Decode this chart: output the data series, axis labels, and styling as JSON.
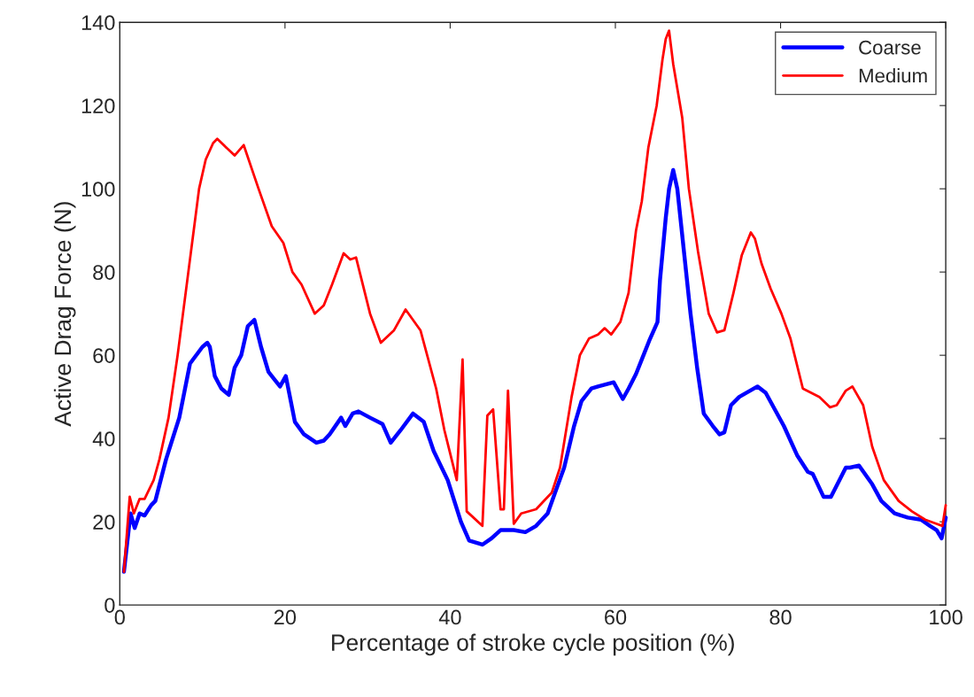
{
  "chart_data": {
    "type": "line",
    "xlabel": "Percentage of stroke cycle position (%)",
    "ylabel": "Active Drag Force (N)",
    "xlim": [
      0,
      100
    ],
    "ylim": [
      0,
      140
    ],
    "xticks": [
      0,
      20,
      40,
      60,
      80,
      100
    ],
    "yticks": [
      0,
      20,
      40,
      60,
      80,
      100,
      120,
      140
    ],
    "grid": false,
    "legend": "top right",
    "line_style": "solid",
    "marker": "none",
    "series": [
      {
        "name": "Coarse",
        "color": "#0000ff",
        "x": [
          0.5,
          1.3,
          1.8,
          2.4,
          3,
          3.8,
          4.3,
          5.6,
          7.2,
          8.5,
          10,
          10.6,
          10.9,
          11.5,
          12.3,
          13.2,
          13.9,
          14.7,
          15.5,
          16.3,
          17.1,
          18,
          18.8,
          19.4,
          20.1,
          21.2,
          22.3,
          23.8,
          24.7,
          25.4,
          26.8,
          27.3,
          28.2,
          28.9,
          30.3,
          31.8,
          32.8,
          34,
          35.5,
          36.8,
          38,
          39.7,
          41.3,
          42.3,
          43.9,
          45,
          46.1,
          47.7,
          49.1,
          50.4,
          51.8,
          52.7,
          53.8,
          55,
          55.9,
          57.1,
          57.9,
          59.8,
          60.9,
          61.6,
          62.5,
          63.2,
          64.1,
          65.1,
          65.4,
          66.1,
          66.5,
          67,
          67.5,
          68.3,
          69.1,
          69.9,
          70.7,
          71.8,
          72.6,
          73.2,
          74,
          75,
          77.2,
          78.2,
          79.3,
          80.4,
          82,
          83.3,
          83.9,
          85.2,
          86.1,
          87.9,
          88.4,
          89.5,
          91.1,
          92.2,
          93.8,
          95.4,
          97,
          98.1,
          98.9,
          99.5,
          100
        ],
        "values": [
          8,
          22,
          18.5,
          22,
          21.5,
          24,
          25,
          35,
          45,
          58,
          62,
          63,
          62,
          55,
          52,
          50.5,
          57,
          60,
          67,
          68.5,
          62,
          56,
          54,
          52.5,
          55,
          44,
          41,
          39,
          39.5,
          41,
          45,
          43,
          46,
          46.5,
          45,
          43.5,
          39,
          42,
          46,
          44,
          37,
          30,
          20,
          15.5,
          14.5,
          16,
          18,
          18,
          17.5,
          19,
          22,
          27,
          33,
          43,
          49,
          52,
          52.5,
          53.5,
          49.5,
          52,
          55.5,
          59,
          63.5,
          68,
          78,
          93,
          100,
          104.5,
          100,
          85,
          70,
          57,
          46,
          43,
          41,
          41.5,
          48,
          50,
          52.5,
          51,
          47,
          43,
          36,
          32,
          31.5,
          26,
          26,
          33,
          33,
          33.5,
          29,
          25,
          22,
          21,
          20.5,
          19,
          18,
          16,
          21
        ]
      },
      {
        "name": "Medium",
        "color": "#ff0000",
        "x": [
          0.5,
          1.2,
          1.7,
          2.4,
          3,
          4.1,
          4.8,
          5.9,
          7,
          8.3,
          9.6,
          10.4,
          11.3,
          11.8,
          13.9,
          15,
          16.8,
          18.4,
          19.8,
          20.9,
          22,
          23.6,
          24.7,
          25.7,
          27.1,
          27.9,
          28.6,
          30.3,
          31.6,
          33.2,
          34.6,
          36.4,
          38.3,
          39.3,
          40.8,
          41.5,
          42,
          43.9,
          44.5,
          45.2,
          46.1,
          46.5,
          47,
          47.7,
          48.6,
          50.4,
          52.3,
          53.3,
          54.7,
          55.7,
          56.8,
          57.9,
          58.7,
          59.5,
          60.6,
          61.6,
          62.5,
          63.2,
          64,
          65,
          65.7,
          66.1,
          66.5,
          67,
          68.1,
          68.9,
          70,
          71.3,
          72.3,
          73.2,
          74.3,
          75.3,
          76.4,
          76.9,
          77.7,
          78.8,
          80.1,
          81.2,
          82.7,
          84.7,
          86,
          86.8,
          87.9,
          88.7,
          90,
          91.1,
          92.5,
          94.3,
          95.9,
          97.5,
          98.9,
          99.6,
          100
        ],
        "values": [
          8,
          26,
          22,
          25.5,
          25.5,
          30,
          35,
          45,
          60,
          80,
          100,
          107,
          111,
          112,
          108,
          110.5,
          100,
          91,
          87,
          80,
          77,
          70,
          72,
          77,
          84.5,
          83,
          83.5,
          70,
          63,
          66,
          71,
          66,
          52,
          42,
          30,
          59,
          22.5,
          19,
          45.5,
          47,
          23,
          23,
          51.5,
          19.5,
          22,
          23,
          27,
          33,
          50,
          60,
          64,
          65,
          66.5,
          65,
          68,
          75,
          90,
          97,
          110,
          120,
          131,
          136,
          138,
          130,
          117,
          100,
          85,
          70,
          65.5,
          66,
          75,
          84,
          89.5,
          88,
          82,
          76,
          70,
          64,
          52,
          50,
          47.5,
          48,
          51.5,
          52.5,
          48,
          38,
          30,
          25,
          22.5,
          20.5,
          19.5,
          19,
          24
        ]
      }
    ]
  }
}
